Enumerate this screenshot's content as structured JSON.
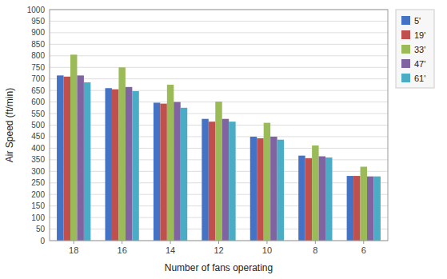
{
  "chart_data": {
    "type": "bar",
    "xlabel": "Number of fans operating",
    "ylabel": "Air Speed (ft/min)",
    "categories": [
      "18",
      "16",
      "14",
      "12",
      "10",
      "8",
      "6"
    ],
    "series": [
      {
        "name": "5'",
        "color": "#4472C4",
        "values": [
          715,
          660,
          597,
          527,
          450,
          368,
          280
        ]
      },
      {
        "name": "19'",
        "color": "#C0504D",
        "values": [
          710,
          655,
          593,
          515,
          443,
          357,
          280
        ]
      },
      {
        "name": "33'",
        "color": "#9BBB59",
        "values": [
          805,
          750,
          675,
          602,
          510,
          412,
          320
        ]
      },
      {
        "name": "47'",
        "color": "#8064A2",
        "values": [
          715,
          665,
          600,
          527,
          450,
          365,
          278
        ]
      },
      {
        "name": "61'",
        "color": "#4BACC6",
        "values": [
          685,
          647,
          575,
          515,
          437,
          360,
          278
        ]
      }
    ],
    "ylim": [
      0,
      1000
    ],
    "yticks": [
      0,
      50,
      100,
      150,
      200,
      250,
      300,
      350,
      400,
      450,
      500,
      550,
      600,
      650,
      700,
      750,
      800,
      850,
      900,
      950,
      1000
    ],
    "grid": true,
    "legend": "right"
  }
}
